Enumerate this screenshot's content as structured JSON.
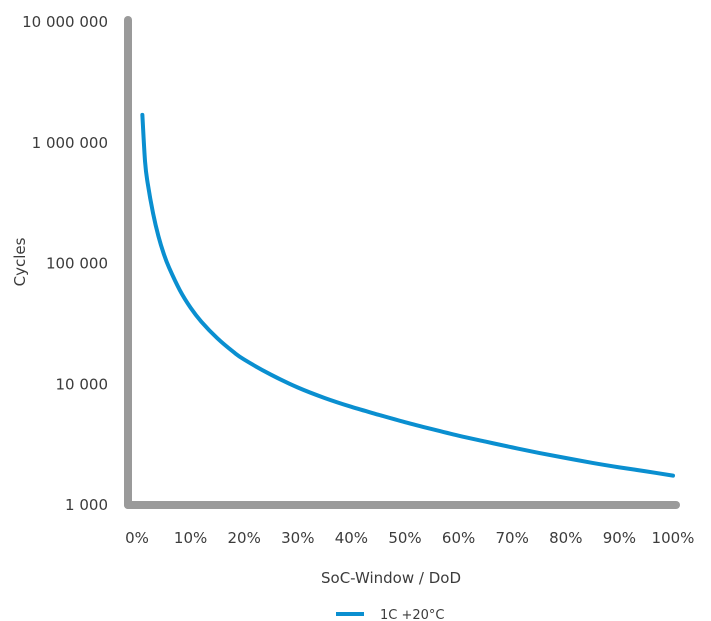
{
  "chart_data": {
    "type": "line",
    "title": "",
    "xlabel": "SoC-Window / DoD",
    "ylabel": "Cycles",
    "x_scale": "linear",
    "y_scale": "log",
    "xlim": [
      0,
      100
    ],
    "ylim": [
      1000,
      10000000
    ],
    "x_ticks": [
      0,
      10,
      20,
      30,
      40,
      50,
      60,
      70,
      80,
      90,
      100
    ],
    "x_tick_labels": [
      "0%",
      "10%",
      "20%",
      "30%",
      "40%",
      "50%",
      "60%",
      "70%",
      "80%",
      "90%",
      "100%"
    ],
    "y_ticks": [
      1000,
      10000,
      100000,
      1000000,
      10000000
    ],
    "y_tick_labels": [
      "1 000",
      "10 000",
      "100 000",
      "1 000 000",
      "10 000 000"
    ],
    "grid": false,
    "legend_position": "bottom-center",
    "series": [
      {
        "name": "1C +20°C",
        "color": "#0a8fd0",
        "x": [
          1,
          1.5,
          2,
          3,
          4,
          5,
          6,
          8,
          10,
          12,
          15,
          18,
          20,
          25,
          30,
          35,
          40,
          45,
          50,
          55,
          60,
          65,
          70,
          75,
          80,
          85,
          90,
          95,
          100
        ],
        "y": [
          1700000,
          700000,
          460000,
          260000,
          168000,
          120000,
          92000,
          60000,
          43000,
          33000,
          24000,
          18500,
          16000,
          12000,
          9400,
          7700,
          6500,
          5600,
          4850,
          4250,
          3750,
          3350,
          3000,
          2700,
          2450,
          2230,
          2050,
          1900,
          1750
        ]
      }
    ]
  },
  "colors": {
    "axis": "#9a9a9a",
    "text": "#3c3c3c",
    "series": "#0a8fd0"
  }
}
